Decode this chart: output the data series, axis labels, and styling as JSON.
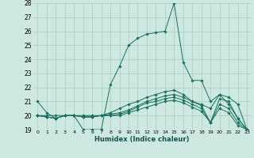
{
  "xlabel": "Humidex (Indice chaleur)",
  "bg_color": "#cce8e0",
  "grid_color": "#aaccbb",
  "line_color": "#1a7060",
  "xlim": [
    -0.5,
    23.5
  ],
  "ylim": [
    19,
    28
  ],
  "yticks": [
    19,
    20,
    21,
    22,
    23,
    24,
    25,
    26,
    27,
    28
  ],
  "xtick_labels": [
    "0",
    "1",
    "2",
    "3",
    "4",
    "5",
    "6",
    "7",
    "8",
    "9",
    "10",
    "11",
    "12",
    "13",
    "14",
    "15",
    "16",
    "17",
    "18",
    "19",
    "20",
    "21",
    "22",
    "23"
  ],
  "series": [
    [
      21.0,
      20.2,
      19.8,
      20.0,
      20.0,
      19.0,
      19.0,
      19.0,
      22.2,
      23.5,
      25.0,
      25.5,
      25.8,
      25.9,
      26.0,
      28.0,
      23.8,
      22.5,
      22.5,
      21.0,
      21.5,
      20.8,
      19.8,
      19.0
    ],
    [
      20.0,
      20.0,
      20.0,
      20.0,
      20.0,
      20.0,
      20.0,
      20.0,
      20.2,
      20.5,
      20.8,
      21.0,
      21.3,
      21.5,
      21.7,
      21.8,
      21.5,
      21.0,
      20.8,
      20.5,
      21.5,
      21.3,
      20.8,
      19.0
    ],
    [
      20.0,
      19.9,
      19.8,
      20.0,
      20.0,
      19.9,
      19.9,
      20.0,
      20.1,
      20.2,
      20.4,
      20.7,
      21.0,
      21.2,
      21.4,
      21.5,
      21.3,
      21.0,
      20.7,
      19.5,
      21.2,
      21.0,
      19.8,
      19.0
    ],
    [
      20.0,
      19.9,
      19.8,
      20.0,
      20.0,
      19.9,
      19.9,
      20.0,
      20.0,
      20.1,
      20.3,
      20.6,
      20.9,
      21.0,
      21.2,
      21.3,
      21.1,
      20.8,
      20.5,
      19.5,
      20.8,
      20.5,
      19.5,
      19.0
    ],
    [
      20.0,
      19.9,
      19.8,
      20.0,
      20.0,
      19.9,
      19.9,
      20.0,
      20.0,
      20.0,
      20.2,
      20.4,
      20.6,
      20.8,
      21.0,
      21.1,
      20.9,
      20.6,
      20.3,
      19.5,
      20.5,
      20.2,
      19.3,
      19.0
    ]
  ]
}
